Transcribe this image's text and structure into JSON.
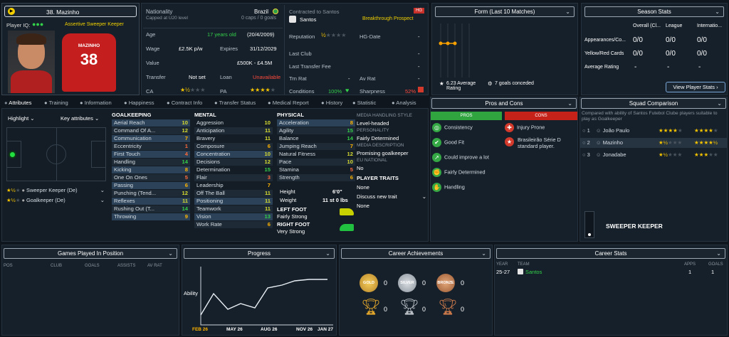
{
  "player": {
    "number_name": "38. Mazinho",
    "iq_label": "Player IQ:",
    "role_line": "Assertive Sweeper Keeper",
    "shirt_name": "MAZINHO",
    "shirt_number": "38"
  },
  "info": {
    "nationality_label": "Nationality",
    "nationality": "Brazil",
    "capped": "Capped at U20 level",
    "caps": "0 caps / 0 goals",
    "age_label": "Age",
    "age": "17 years old",
    "dob": "(20/4/2009)",
    "wage_label": "Wage",
    "wage": "£2.5K p/w",
    "expires_label": "Expires",
    "expires": "31/12/2029",
    "value_label": "Value",
    "value": "£500K - £4.5M",
    "transfer_label": "Transfer",
    "transfer": "Not set",
    "loan_label": "Loan",
    "loan": "Unavailable",
    "ca_label": "CA",
    "pa_label": "PA",
    "contracted": "Contracted to Santos",
    "club": "Santos",
    "hg": "HG",
    "prospect": "Breakthrough Prospect",
    "reputation_label": "Reputation",
    "hg_date_label": "HG-Date",
    "hg_date": "-",
    "last_club_label": "Last Club",
    "last_club": "-",
    "last_fee_label": "Last Transfer Fee",
    "last_fee": "-",
    "trn_rat_label": "Trn Rat",
    "trn_rat": "-",
    "av_rat_label": "Av Rat",
    "av_rat": "-",
    "conditions_label": "Conditions",
    "conditions": "100%",
    "sharpness_label": "Sharpness",
    "sharpness": "52%"
  },
  "form": {
    "title": "Form (Last 10 Matches)",
    "avg": "6.23 Average Rating",
    "goals": "7 goals conceded"
  },
  "season": {
    "title": "Season Stats",
    "cols": [
      "Overall (Cl...",
      "League",
      "Internatio..."
    ],
    "rows": [
      {
        "label": "Appearances/Co...",
        "vals": [
          "0/0",
          "0/0",
          "0/0"
        ]
      },
      {
        "label": "Yellow/Red Cards",
        "vals": [
          "0/0",
          "0/0",
          "0/0"
        ]
      },
      {
        "label": "Average Rating",
        "vals": [
          "-",
          "-",
          "-"
        ]
      }
    ],
    "button": "View Player Stats"
  },
  "tabs": [
    "Attributes",
    "Training",
    "Information",
    "Happiness",
    "Contract Info",
    "Transfer Status",
    "Medical Report",
    "History",
    "Statistic",
    "Analysis"
  ],
  "left": {
    "highlight": "Highlight",
    "key_attrs": "Key attributes",
    "roles": [
      "Sweeper Keeper (De)",
      "Goalkeeper (De)"
    ]
  },
  "gk": {
    "title": "GOALKEEPING",
    "items": [
      {
        "n": "Aerial Reach",
        "v": "10"
      },
      {
        "n": "Command Of A...",
        "v": "12"
      },
      {
        "n": "Communication",
        "v": "7"
      },
      {
        "n": "Eccentricity",
        "v": "1"
      },
      {
        "n": "First Touch",
        "v": "4"
      },
      {
        "n": "Handling",
        "v": "14"
      },
      {
        "n": "Kicking",
        "v": "8"
      },
      {
        "n": "One On Ones",
        "v": "5"
      },
      {
        "n": "Passing",
        "v": "6"
      },
      {
        "n": "Punching (Tend...",
        "v": "12"
      },
      {
        "n": "Reflexes",
        "v": "11"
      },
      {
        "n": "Rushing Out (T...",
        "v": "14"
      },
      {
        "n": "Throwing",
        "v": "9"
      }
    ]
  },
  "mental": {
    "title": "MENTAL",
    "items": [
      {
        "n": "Aggression",
        "v": "10"
      },
      {
        "n": "Anticipation",
        "v": "11"
      },
      {
        "n": "Bravery",
        "v": "11"
      },
      {
        "n": "Composure",
        "v": "6"
      },
      {
        "n": "Concentration",
        "v": "10"
      },
      {
        "n": "Decisions",
        "v": "12"
      },
      {
        "n": "Determination",
        "v": "15"
      },
      {
        "n": "Flair",
        "v": "3"
      },
      {
        "n": "Leadership",
        "v": "7"
      },
      {
        "n": "Off The Ball",
        "v": "11"
      },
      {
        "n": "Positioning",
        "v": "11"
      },
      {
        "n": "Teamwork",
        "v": "11"
      },
      {
        "n": "Vision",
        "v": "13"
      },
      {
        "n": "Work Rate",
        "v": "6"
      }
    ]
  },
  "physical": {
    "title": "PHYSICAL",
    "items": [
      {
        "n": "Acceleration",
        "v": "8"
      },
      {
        "n": "Agility",
        "v": "15"
      },
      {
        "n": "Balance",
        "v": "14"
      },
      {
        "n": "Jumping Reach",
        "v": "7"
      },
      {
        "n": "Natural Fitness",
        "v": "12"
      },
      {
        "n": "Pace",
        "v": "10"
      },
      {
        "n": "Stamina",
        "v": "5"
      },
      {
        "n": "Strength",
        "v": "6"
      }
    ],
    "height_label": "Height",
    "height": "6'0\"",
    "weight_label": "Weight",
    "weight": "11 st 0 lbs",
    "left_foot_label": "LEFT FOOT",
    "left_foot": "Fairly Strong",
    "right_foot_label": "RIGHT FOOT",
    "right_foot": "Very Strong"
  },
  "media": {
    "style_title": "MEDIA HANDLING STYLE",
    "style": "Level-headed",
    "personality_title": "PERSONALITY",
    "personality": "Fairly Determined",
    "desc_title": "MEDIA DESCRIPTION",
    "desc": "Promising goalkeeper",
    "eu_title": "EU NATIONAL",
    "eu": "No",
    "traits_title": "PLAYER TRAITS",
    "trait1": "None",
    "discuss": "Discuss new trait",
    "trait2": "None"
  },
  "proscons": {
    "title": "Pros and Cons",
    "pros_title": "PROS",
    "cons_title": "CONS",
    "pros": [
      "Consistency",
      "Good Fit",
      "Could improve a lot",
      "Fairly Determined",
      "Handling"
    ],
    "cons": [
      "Injury Prone",
      "Brasileirão Série D standard player."
    ]
  },
  "squad": {
    "title": "Squad Comparison",
    "desc": "Compared with ability of Santos Futebol Clube players suitable to play as Goalkeeper",
    "rows": [
      {
        "rank": "1",
        "name": "João Paulo"
      },
      {
        "rank": "2",
        "name": "Mazinho"
      },
      {
        "rank": "3",
        "name": "Jonadabe"
      }
    ],
    "role": "SWEEPER KEEPER"
  },
  "games": {
    "title": "Games Played In Position",
    "cols": [
      "POS",
      "CLUB",
      "GOALS",
      "ASSISTS",
      "AV RAT"
    ]
  },
  "progress": {
    "title": "Progress",
    "ylabel": "Ability",
    "x_labels": [
      "FEB 26",
      "MAY 26",
      "AUG 26",
      "NOV 26",
      "JAN 27"
    ]
  },
  "achievements": {
    "title": "Career Achievements",
    "medals": [
      {
        "label": "GOLD",
        "count": "0"
      },
      {
        "label": "SILVER",
        "count": "0"
      },
      {
        "label": "BRONZE",
        "count": "0"
      }
    ],
    "trophies": [
      "0",
      "0",
      "0"
    ]
  },
  "career": {
    "title": "Career Stats",
    "cols": [
      "YEAR",
      "TEAM",
      "APPS",
      "GOALS"
    ],
    "rows": [
      {
        "year": "25-27",
        "team": "Santos",
        "apps": "1",
        "goals": "1"
      }
    ]
  }
}
